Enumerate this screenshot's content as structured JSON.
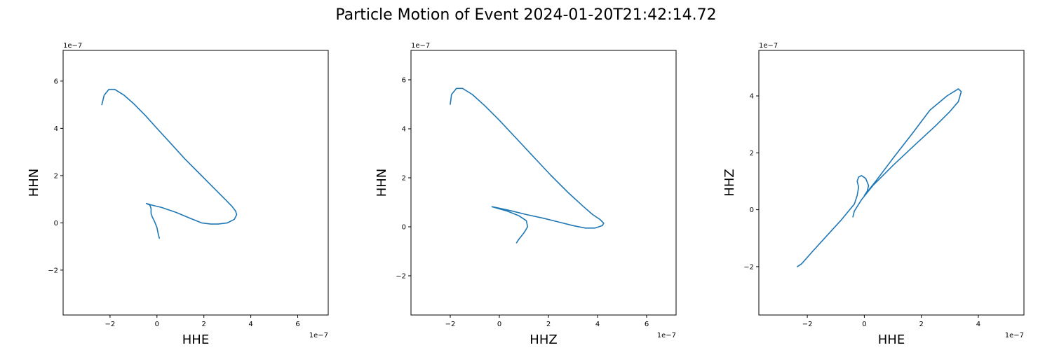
{
  "title": "Particle Motion of Event 2024-01-20T21:42:14.72",
  "colors": {
    "line": "#1f77b4",
    "axes": "#000000",
    "background": "#ffffff"
  },
  "chart_data": [
    {
      "type": "line",
      "xlabel": "HHE",
      "ylabel": "HHN",
      "x_offset_label": "1e−7",
      "y_offset_label": "1e−7",
      "xlim": [
        -4.0,
        7.3
      ],
      "ylim": [
        -3.9,
        7.3
      ],
      "xticks": [
        -2,
        0,
        2,
        4,
        6
      ],
      "xtick_labels": [
        "−2",
        "0",
        "2",
        "4",
        "6"
      ],
      "yticks": [
        -2,
        0,
        2,
        4,
        6
      ],
      "ytick_labels": [
        "−2",
        "0",
        "2",
        "4",
        "6"
      ],
      "grid": false,
      "series": [
        {
          "x": [
            -2.35,
            -2.25,
            -2.05,
            -1.8,
            -1.4,
            -1.0,
            -0.5,
            0.0,
            0.6,
            1.2,
            1.8,
            2.4,
            2.9,
            3.2,
            3.35,
            3.4,
            3.3,
            3.0,
            2.6,
            2.3,
            1.9,
            1.4,
            0.8,
            0.2,
            -0.2,
            -0.45,
            -0.3,
            -0.25,
            -0.25,
            -0.2,
            -0.1,
            0.0,
            0.05,
            0.1
          ],
          "y": [
            5.0,
            5.4,
            5.65,
            5.65,
            5.4,
            5.05,
            4.55,
            4.0,
            3.35,
            2.7,
            2.1,
            1.5,
            1.0,
            0.7,
            0.5,
            0.35,
            0.15,
            0.0,
            -0.05,
            -0.05,
            0.0,
            0.2,
            0.45,
            0.65,
            0.75,
            0.82,
            0.75,
            0.6,
            0.4,
            0.25,
            0.05,
            -0.2,
            -0.45,
            -0.65
          ]
        }
      ]
    },
    {
      "type": "line",
      "xlabel": "HHZ",
      "ylabel": "HHN",
      "x_offset_label": "1e−7",
      "y_offset_label": "1e−7",
      "xlim": [
        -3.6,
        7.2
      ],
      "ylim": [
        -3.6,
        7.2
      ],
      "xticks": [
        -2,
        0,
        2,
        4,
        6
      ],
      "xtick_labels": [
        "−2",
        "0",
        "2",
        "4",
        "6"
      ],
      "yticks": [
        -2,
        0,
        2,
        4,
        6
      ],
      "ytick_labels": [
        "−2",
        "0",
        "2",
        "4",
        "6"
      ],
      "grid": false,
      "series": [
        {
          "x": [
            -2.0,
            -1.95,
            -1.75,
            -1.5,
            -1.1,
            -0.6,
            0.0,
            0.7,
            1.4,
            2.1,
            2.8,
            3.4,
            3.8,
            4.1,
            4.25,
            4.2,
            3.9,
            3.5,
            3.0,
            2.4,
            1.8,
            1.1,
            0.5,
            -0.1,
            -0.3,
            0.3,
            0.8,
            1.1,
            1.15,
            1.0,
            0.8,
            0.7
          ],
          "y": [
            5.0,
            5.4,
            5.65,
            5.65,
            5.4,
            4.95,
            4.35,
            3.6,
            2.85,
            2.1,
            1.4,
            0.85,
            0.5,
            0.3,
            0.15,
            0.05,
            -0.05,
            -0.05,
            0.05,
            0.2,
            0.35,
            0.5,
            0.65,
            0.78,
            0.82,
            0.65,
            0.45,
            0.25,
            0.0,
            -0.25,
            -0.5,
            -0.65
          ]
        }
      ]
    },
    {
      "type": "line",
      "xlabel": "HHE",
      "ylabel": "HHZ",
      "x_offset_label": "1e−7",
      "y_offset_label": "1e−7",
      "xlim": [
        -3.7,
        5.6
      ],
      "ylim": [
        -3.7,
        5.6
      ],
      "xticks": [
        -2,
        0,
        2,
        4
      ],
      "xtick_labels": [
        "−2",
        "0",
        "2",
        "4"
      ],
      "yticks": [
        -2,
        0,
        2,
        4
      ],
      "ytick_labels": [
        "−2",
        "0",
        "2",
        "4"
      ],
      "grid": false,
      "series": [
        {
          "x": [
            -2.35,
            -2.2,
            -1.8,
            -1.3,
            -0.8,
            -0.35,
            -0.25,
            -0.2,
            -0.25,
            -0.2,
            -0.1,
            0.05,
            0.15,
            0.1,
            0.0,
            0.4,
            1.0,
            1.7,
            2.3,
            2.9,
            3.3,
            3.4,
            3.3,
            3.0,
            2.5,
            1.8,
            1.0,
            0.3,
            -0.1,
            -0.35,
            -0.4
          ],
          "y": [
            -2.0,
            -1.9,
            -1.45,
            -0.9,
            -0.35,
            0.2,
            0.5,
            0.8,
            1.0,
            1.15,
            1.2,
            1.1,
            0.85,
            0.65,
            0.5,
            1.0,
            1.8,
            2.7,
            3.5,
            4.0,
            4.25,
            4.15,
            3.8,
            3.45,
            2.95,
            2.3,
            1.55,
            0.85,
            0.35,
            -0.05,
            -0.25
          ]
        }
      ]
    }
  ]
}
